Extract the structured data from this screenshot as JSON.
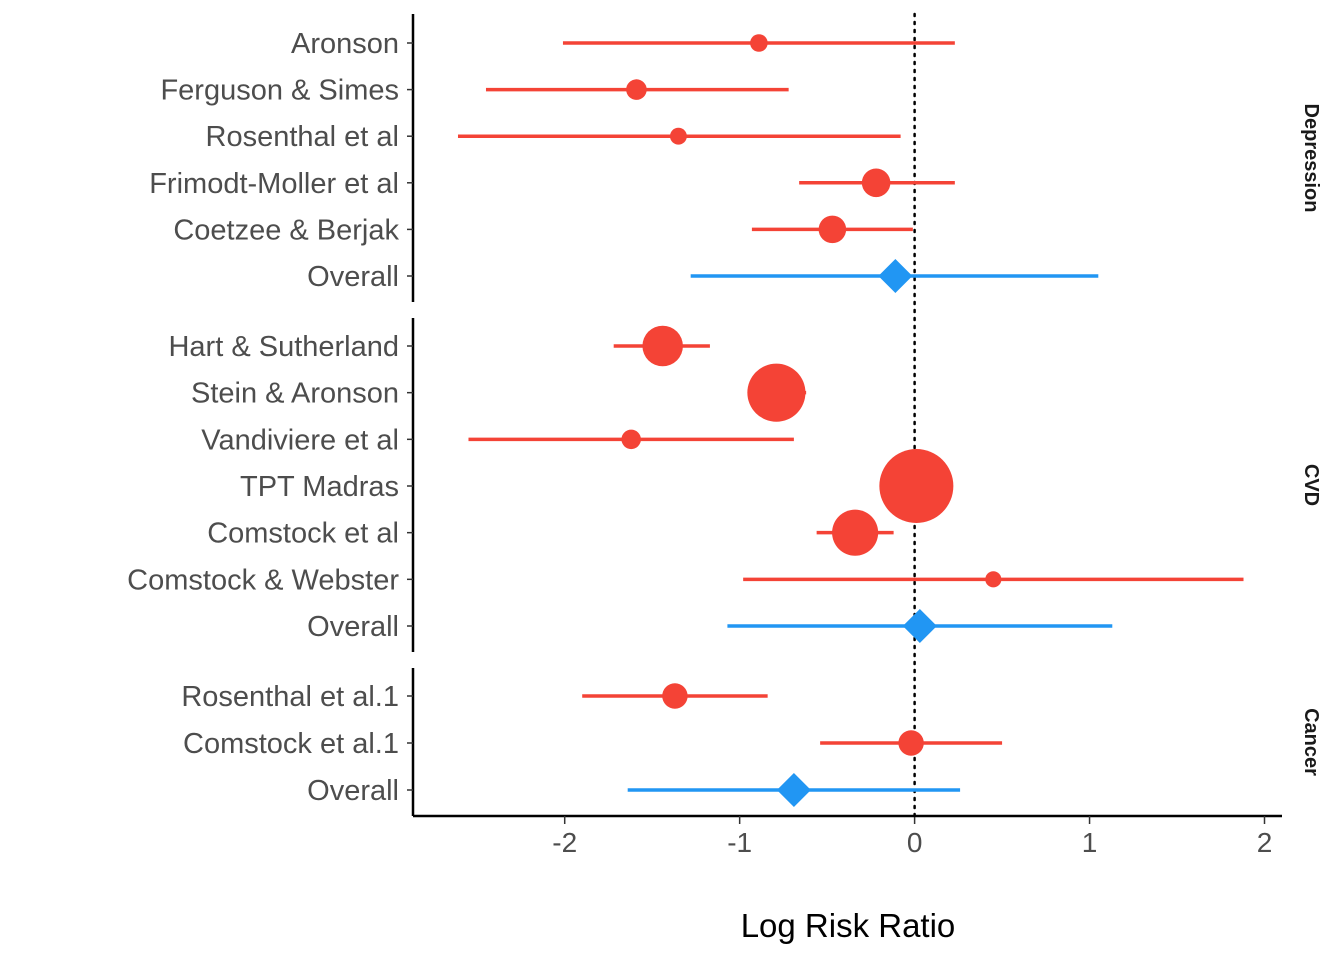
{
  "chart_data": {
    "type": "forest",
    "xlabel": "Log Risk Ratio",
    "xlim": [
      -2.85,
      2.1
    ],
    "xticks": [
      -2,
      -1,
      0,
      1,
      2
    ],
    "xtick_labels": [
      "-2",
      "-1",
      "0",
      "1",
      "2"
    ],
    "reference_line": 0,
    "colors": {
      "study": "#F44336",
      "overall": "#2196F3",
      "reference": "#000000"
    },
    "legend": "none",
    "grid": false,
    "facets": [
      {
        "name": "Depression",
        "rows": [
          {
            "label": "Aronson",
            "est": -0.89,
            "lo": -2.01,
            "hi": 0.23,
            "weight": 0.7,
            "kind": "study"
          },
          {
            "label": "Ferguson & Simes",
            "est": -1.59,
            "lo": -2.45,
            "hi": -0.72,
            "weight": 1.2,
            "kind": "study"
          },
          {
            "label": "Rosenthal et al",
            "est": -1.35,
            "lo": -2.61,
            "hi": -0.08,
            "weight": 0.6,
            "kind": "study"
          },
          {
            "label": "Frimodt-Moller et al",
            "est": -0.22,
            "lo": -0.66,
            "hi": 0.23,
            "weight": 3.2,
            "kind": "study"
          },
          {
            "label": "Coetzee & Berjak",
            "est": -0.47,
            "lo": -0.93,
            "hi": -0.01,
            "weight": 2.9,
            "kind": "study"
          },
          {
            "label": "Overall",
            "est": -0.11,
            "lo": -1.28,
            "hi": 1.05,
            "kind": "overall"
          }
        ]
      },
      {
        "name": "CVD",
        "rows": [
          {
            "label": "Hart & Sutherland",
            "est": -1.44,
            "lo": -1.72,
            "hi": -1.17,
            "weight": 8.0,
            "kind": "study"
          },
          {
            "label": "Stein & Aronson",
            "est": -0.79,
            "lo": -0.95,
            "hi": -0.62,
            "weight": 19.0,
            "kind": "study"
          },
          {
            "label": "Vandiviere et al",
            "est": -1.62,
            "lo": -2.55,
            "hi": -0.69,
            "weight": 1.0,
            "kind": "study"
          },
          {
            "label": "TPT Madras",
            "est": 0.01,
            "lo": -0.11,
            "hi": 0.13,
            "weight": 33.0,
            "kind": "study"
          },
          {
            "label": "Comstock et al",
            "est": -0.34,
            "lo": -0.56,
            "hi": -0.12,
            "weight": 11.0,
            "kind": "study"
          },
          {
            "label": "Comstock & Webster",
            "est": 0.45,
            "lo": -0.98,
            "hi": 1.88,
            "weight": 0.5,
            "kind": "study"
          },
          {
            "label": "Overall",
            "est": 0.03,
            "lo": -1.07,
            "hi": 1.13,
            "kind": "overall"
          }
        ]
      },
      {
        "name": "Cancer",
        "rows": [
          {
            "label": "Rosenthal et al.1",
            "est": -1.37,
            "lo": -1.9,
            "hi": -0.84,
            "weight": 2.3,
            "kind": "study"
          },
          {
            "label": "Comstock et al.1",
            "est": -0.02,
            "lo": -0.54,
            "hi": 0.5,
            "weight": 2.3,
            "kind": "study"
          },
          {
            "label": "Overall",
            "est": -0.69,
            "lo": -1.64,
            "hi": 0.26,
            "kind": "overall"
          }
        ]
      }
    ]
  }
}
